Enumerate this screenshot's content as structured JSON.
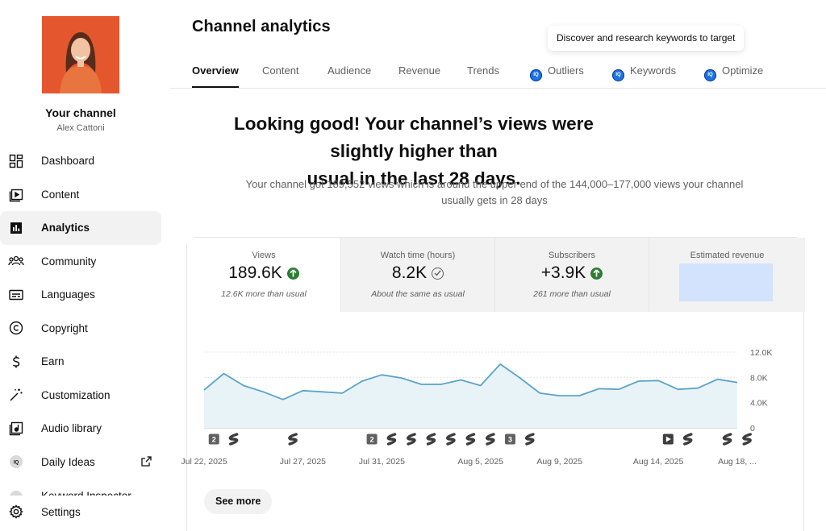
{
  "channel": {
    "title": "Your channel",
    "name": "Alex Cattoni"
  },
  "sidebar": {
    "items": [
      {
        "label": "Dashboard",
        "icon": "dashboard-icon"
      },
      {
        "label": "Content",
        "icon": "content-icon"
      },
      {
        "label": "Analytics",
        "icon": "analytics-icon",
        "active": true
      },
      {
        "label": "Community",
        "icon": "community-icon"
      },
      {
        "label": "Languages",
        "icon": "languages-icon"
      },
      {
        "label": "Copyright",
        "icon": "copyright-icon"
      },
      {
        "label": "Earn",
        "icon": "earn-icon"
      },
      {
        "label": "Customization",
        "icon": "customization-icon"
      },
      {
        "label": "Audio library",
        "icon": "audio-library-icon"
      },
      {
        "label": "Daily Ideas",
        "icon": "vidiq-icon",
        "external": true
      }
    ],
    "partial_item": "Keyword Inspector",
    "settings_label": "Settings"
  },
  "header": {
    "title": "Channel analytics",
    "tooltip": "Discover and research keywords to target"
  },
  "tabs": [
    {
      "label": "Overview",
      "active": true
    },
    {
      "label": "Content"
    },
    {
      "label": "Audience"
    },
    {
      "label": "Revenue"
    },
    {
      "label": "Trends"
    },
    {
      "label": "Outliers",
      "icon": "vidiq-icon"
    },
    {
      "label": "Keywords",
      "icon": "vidiq-icon"
    },
    {
      "label": "Optimize",
      "icon": "vidiq-icon"
    }
  ],
  "headline": {
    "line1": "Looking good! Your channel’s views were slightly higher than",
    "line2": "usual in the last 28 days.",
    "summary_line1": "Your channel got 189,552 views which is around the upper end of the 144,000–177,000 views your channel",
    "summary_line2": "usually gets in 28 days"
  },
  "metrics": [
    {
      "label": "Views",
      "value": "189.6K",
      "status": "up",
      "note": "12.6K more than usual"
    },
    {
      "label": "Watch time (hours)",
      "value": "8.2K",
      "status": "same",
      "note": "About the same as usual"
    },
    {
      "label": "Subscribers",
      "value": "+3.9K",
      "status": "up",
      "note": "261 more than usual"
    },
    {
      "label": "Estimated revenue",
      "value": "",
      "status": "hidden",
      "note": ""
    }
  ],
  "colors": {
    "line": "#5aa3c9",
    "area": "#e8f3f7",
    "up": "#2e7d32",
    "hidden_revenue": "#d3e3fd"
  },
  "chart_data": {
    "type": "area",
    "title": "",
    "xlabel": "",
    "ylabel": "",
    "ylim": [
      0,
      12000
    ],
    "yticks": [
      {
        "value": 0,
        "label": "0"
      },
      {
        "value": 4000,
        "label": "4.0K"
      },
      {
        "value": 8000,
        "label": "8.0K"
      },
      {
        "value": 12000,
        "label": "12.0K"
      }
    ],
    "xticks": [
      {
        "index": 0,
        "label": "Jul 22, 2025"
      },
      {
        "index": 5,
        "label": "Jul 27, 2025"
      },
      {
        "index": 9,
        "label": "Jul 31, 2025"
      },
      {
        "index": 14,
        "label": "Aug 5, 2025"
      },
      {
        "index": 18,
        "label": "Aug 9, 2025"
      },
      {
        "index": 23,
        "label": "Aug 14, 2025"
      },
      {
        "index": 27,
        "label": "Aug 18, ..."
      }
    ],
    "series": [
      {
        "values": [
          6000,
          8600,
          6700,
          5700,
          4500,
          5900,
          5700,
          5500,
          7400,
          8400,
          7900,
          6900,
          6900,
          7600,
          6700,
          10100,
          7900,
          5500,
          5100,
          5100,
          6200,
          6100,
          7400,
          7500,
          6100,
          6300,
          7700,
          7200
        ]
      }
    ],
    "markers": [
      {
        "index": 1,
        "type": "count",
        "label": "2"
      },
      {
        "index": 2,
        "type": "short"
      },
      {
        "index": 5,
        "type": "short"
      },
      {
        "index": 9,
        "type": "count",
        "label": "2"
      },
      {
        "index": 10,
        "type": "short"
      },
      {
        "index": 11,
        "type": "short"
      },
      {
        "index": 12,
        "type": "short"
      },
      {
        "index": 13,
        "type": "short"
      },
      {
        "index": 14,
        "type": "short"
      },
      {
        "index": 15,
        "type": "short"
      },
      {
        "index": 16,
        "type": "count",
        "label": "3"
      },
      {
        "index": 17,
        "type": "short"
      },
      {
        "index": 24,
        "type": "video"
      },
      {
        "index": 25,
        "type": "short"
      },
      {
        "index": 27,
        "type": "short"
      },
      {
        "index": 28,
        "type": "short"
      }
    ],
    "grid": true
  },
  "see_more_label": "See more"
}
